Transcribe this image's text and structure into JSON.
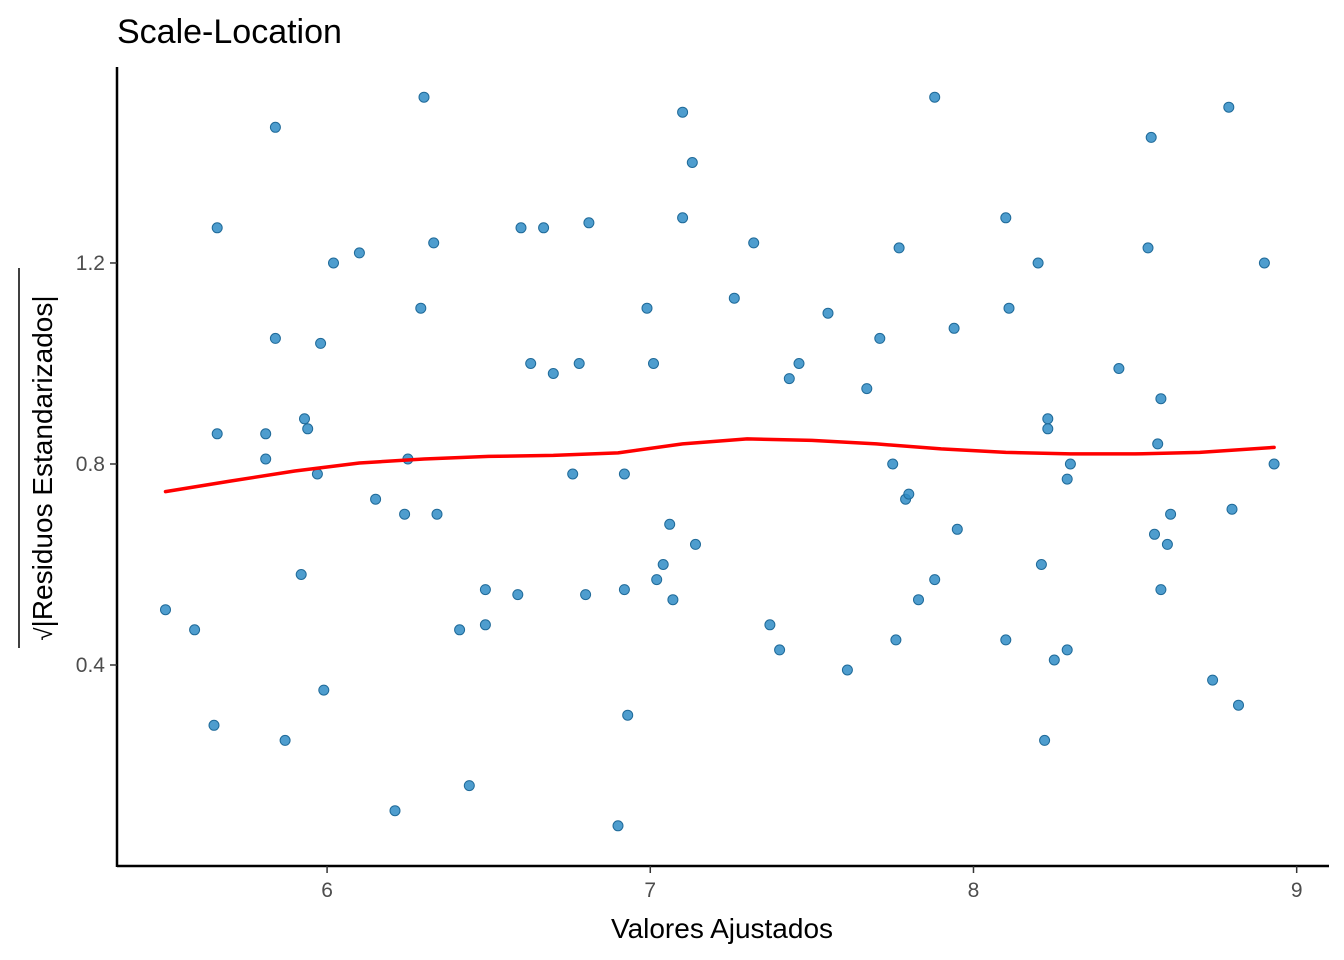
{
  "chart_data": {
    "type": "scatter",
    "title": "Scale-Location",
    "xlabel": "Valores Ajustados",
    "ylabel": "|Residuos Estandarizados|",
    "ylabel_prefix": "√",
    "xlim": [
      5.35,
      9.1
    ],
    "ylim": [
      0.0,
      1.59
    ],
    "xticks": [
      6,
      7,
      8,
      9
    ],
    "xtick_labels": [
      "6",
      "7",
      "8",
      "9"
    ],
    "yticks": [
      0.4,
      0.8,
      1.2
    ],
    "ytick_labels": [
      "0.4",
      "0.8",
      "1.2"
    ],
    "grid": false,
    "legend": "none",
    "colors": {
      "point_fill": "#2f8cc6",
      "point_stroke": "#1f6a99",
      "smooth": "#ff0000"
    },
    "points": [
      [
        5.5,
        0.51
      ],
      [
        5.59,
        0.47
      ],
      [
        5.65,
        0.28
      ],
      [
        5.66,
        1.27
      ],
      [
        5.66,
        0.86
      ],
      [
        5.81,
        0.86
      ],
      [
        5.81,
        0.81
      ],
      [
        5.84,
        1.47
      ],
      [
        5.84,
        1.05
      ],
      [
        5.87,
        0.25
      ],
      [
        5.92,
        0.58
      ],
      [
        5.93,
        0.89
      ],
      [
        5.94,
        0.87
      ],
      [
        5.97,
        0.78
      ],
      [
        5.98,
        1.04
      ],
      [
        5.99,
        0.35
      ],
      [
        6.02,
        1.2
      ],
      [
        6.1,
        1.22
      ],
      [
        6.15,
        0.73
      ],
      [
        6.21,
        0.11
      ],
      [
        6.24,
        0.7
      ],
      [
        6.25,
        0.81
      ],
      [
        6.29,
        1.11
      ],
      [
        6.3,
        1.53
      ],
      [
        6.33,
        1.24
      ],
      [
        6.34,
        0.7
      ],
      [
        6.41,
        0.47
      ],
      [
        6.44,
        0.16
      ],
      [
        6.49,
        0.55
      ],
      [
        6.49,
        0.48
      ],
      [
        6.59,
        0.54
      ],
      [
        6.6,
        1.27
      ],
      [
        6.63,
        1.0
      ],
      [
        6.67,
        1.27
      ],
      [
        6.7,
        0.98
      ],
      [
        6.76,
        0.78
      ],
      [
        6.78,
        1.0
      ],
      [
        6.8,
        0.54
      ],
      [
        6.81,
        1.28
      ],
      [
        6.9,
        0.08
      ],
      [
        6.92,
        0.55
      ],
      [
        6.92,
        0.78
      ],
      [
        6.93,
        0.3
      ],
      [
        6.99,
        1.11
      ],
      [
        7.01,
        1.0
      ],
      [
        7.02,
        0.57
      ],
      [
        7.04,
        0.6
      ],
      [
        7.06,
        0.68
      ],
      [
        7.07,
        0.53
      ],
      [
        7.1,
        1.5
      ],
      [
        7.1,
        1.29
      ],
      [
        7.13,
        1.4
      ],
      [
        7.14,
        0.64
      ],
      [
        7.26,
        1.13
      ],
      [
        7.32,
        1.24
      ],
      [
        7.37,
        0.48
      ],
      [
        7.4,
        0.43
      ],
      [
        7.43,
        0.97
      ],
      [
        7.46,
        1.0
      ],
      [
        7.55,
        1.1
      ],
      [
        7.61,
        0.39
      ],
      [
        7.67,
        0.95
      ],
      [
        7.71,
        1.05
      ],
      [
        7.75,
        0.8
      ],
      [
        7.76,
        0.45
      ],
      [
        7.77,
        1.23
      ],
      [
        7.79,
        0.73
      ],
      [
        7.8,
        0.74
      ],
      [
        7.83,
        0.53
      ],
      [
        7.88,
        0.57
      ],
      [
        7.88,
        1.53
      ],
      [
        7.94,
        1.07
      ],
      [
        7.95,
        0.67
      ],
      [
        8.1,
        1.29
      ],
      [
        8.1,
        0.45
      ],
      [
        8.11,
        1.11
      ],
      [
        8.2,
        1.2
      ],
      [
        8.21,
        0.6
      ],
      [
        8.22,
        0.25
      ],
      [
        8.23,
        0.89
      ],
      [
        8.23,
        0.87
      ],
      [
        8.25,
        0.41
      ],
      [
        8.29,
        0.43
      ],
      [
        8.29,
        0.77
      ],
      [
        8.3,
        0.8
      ],
      [
        8.45,
        0.99
      ],
      [
        8.54,
        1.23
      ],
      [
        8.55,
        1.45
      ],
      [
        8.56,
        0.66
      ],
      [
        8.57,
        0.84
      ],
      [
        8.58,
        0.93
      ],
      [
        8.58,
        0.55
      ],
      [
        8.6,
        0.64
      ],
      [
        8.61,
        0.7
      ],
      [
        8.74,
        0.37
      ],
      [
        8.79,
        1.51
      ],
      [
        8.8,
        0.71
      ],
      [
        8.82,
        0.32
      ],
      [
        8.9,
        1.2
      ],
      [
        8.93,
        0.8
      ]
    ],
    "smooth_line": [
      [
        5.5,
        0.745
      ],
      [
        5.7,
        0.766
      ],
      [
        5.9,
        0.786
      ],
      [
        6.1,
        0.802
      ],
      [
        6.3,
        0.81
      ],
      [
        6.5,
        0.815
      ],
      [
        6.7,
        0.817
      ],
      [
        6.9,
        0.822
      ],
      [
        7.1,
        0.84
      ],
      [
        7.3,
        0.85
      ],
      [
        7.5,
        0.847
      ],
      [
        7.7,
        0.84
      ],
      [
        7.9,
        0.83
      ],
      [
        8.1,
        0.823
      ],
      [
        8.3,
        0.82
      ],
      [
        8.5,
        0.82
      ],
      [
        8.7,
        0.823
      ],
      [
        8.93,
        0.833
      ]
    ]
  }
}
